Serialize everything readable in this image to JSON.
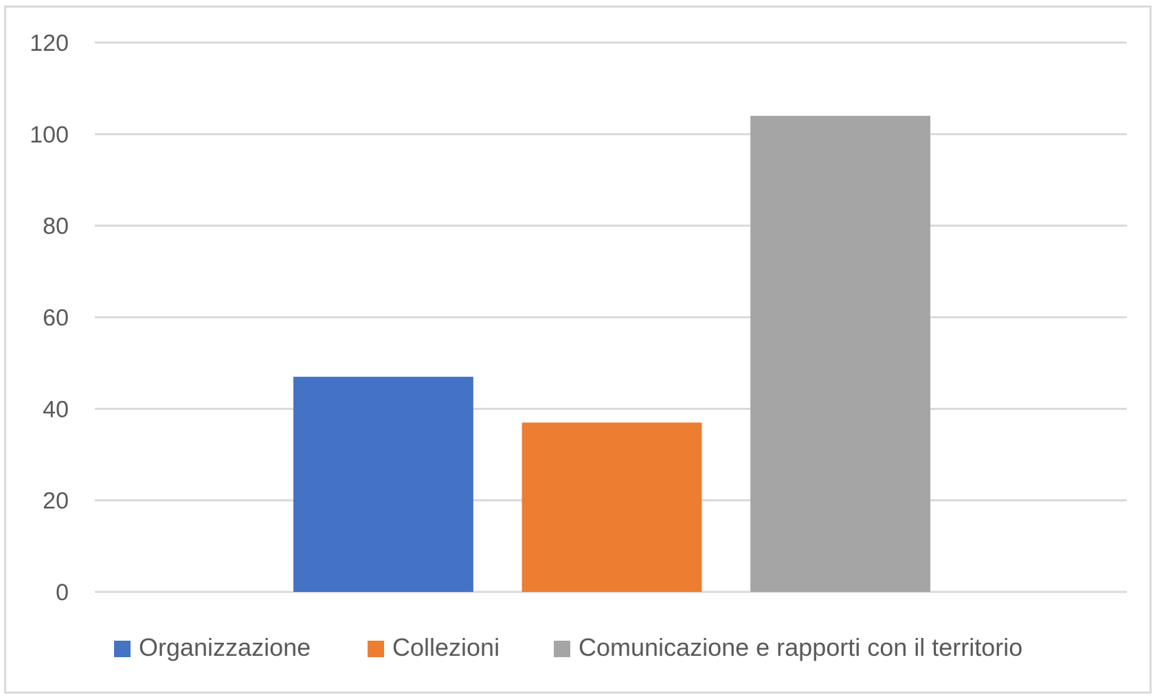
{
  "chart_data": {
    "type": "bar",
    "title": "",
    "xlabel": "",
    "ylabel": "",
    "ylim": [
      0,
      120
    ],
    "yticks": [
      0,
      20,
      40,
      60,
      80,
      100,
      120
    ],
    "grid": true,
    "legend_position": "bottom",
    "series": [
      {
        "name": "Organizzazione",
        "values": [
          47
        ],
        "color": "#4472c4"
      },
      {
        "name": "Collezioni",
        "values": [
          37
        ],
        "color": "#ed7d31"
      },
      {
        "name": "Comunicazione e rapporti con il territorio",
        "values": [
          104
        ],
        "color": "#a5a5a5"
      }
    ]
  }
}
